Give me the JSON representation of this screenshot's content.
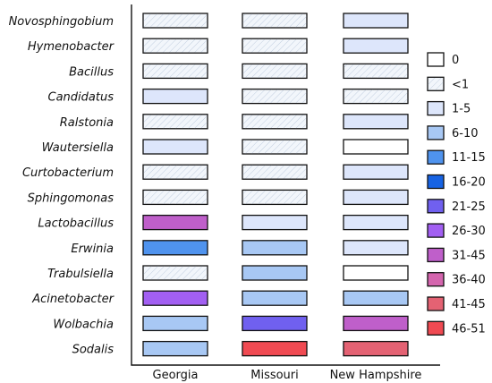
{
  "chart_data": {
    "type": "heatmap",
    "title": "",
    "xlabel": "",
    "ylabel": "",
    "x": [
      "Georgia",
      "Missouri",
      "New Hampshire"
    ],
    "y": [
      "Novosphingobium",
      "Hymenobacter",
      "Bacillus",
      "Candidatus",
      "Ralstonia",
      "Wautersiella",
      "Curtobacterium",
      "Sphingomonas",
      "Lactobacillus",
      "Erwinia",
      "Trabulsiella",
      "Acinetobacter",
      "Wolbachia",
      "Sodalis"
    ],
    "values": [
      [
        "<1",
        "<1",
        "1-5"
      ],
      [
        "<1",
        "<1",
        "1-5"
      ],
      [
        "<1",
        "<1",
        "<1"
      ],
      [
        "1-5",
        "<1",
        "<1"
      ],
      [
        "<1",
        "<1",
        "1-5"
      ],
      [
        "1-5",
        "<1",
        "0"
      ],
      [
        "<1",
        "<1",
        "1-5"
      ],
      [
        "<1",
        "<1",
        "1-5"
      ],
      [
        "31-45",
        "1-5",
        "1-5"
      ],
      [
        "11-15",
        "6-10",
        "1-5"
      ],
      [
        "<1",
        "6-10",
        "0"
      ],
      [
        "26-30",
        "6-10",
        "6-10"
      ],
      [
        "6-10",
        "21-25",
        "31-45"
      ],
      [
        "6-10",
        "46-51",
        "41-45"
      ]
    ],
    "legend": {
      "placement": "right",
      "bins": [
        {
          "label": "0",
          "color": "#ffffff"
        },
        {
          "label": "<1",
          "color": "#f2f6fb"
        },
        {
          "label": "1-5",
          "color": "#dde6fb"
        },
        {
          "label": "6-10",
          "color": "#a8c8f4"
        },
        {
          "label": "11-15",
          "color": "#4f93ee"
        },
        {
          "label": "16-20",
          "color": "#1763e3"
        },
        {
          "label": "21-25",
          "color": "#7060ef"
        },
        {
          "label": "26-30",
          "color": "#a25ff2"
        },
        {
          "label": "31-45",
          "color": "#bf5fca"
        },
        {
          "label": "36-40",
          "color": "#d465ae"
        },
        {
          "label": "41-45",
          "color": "#e46273"
        },
        {
          "label": "46-51",
          "color": "#f04a52"
        }
      ]
    },
    "hatched_bin": "<1"
  }
}
